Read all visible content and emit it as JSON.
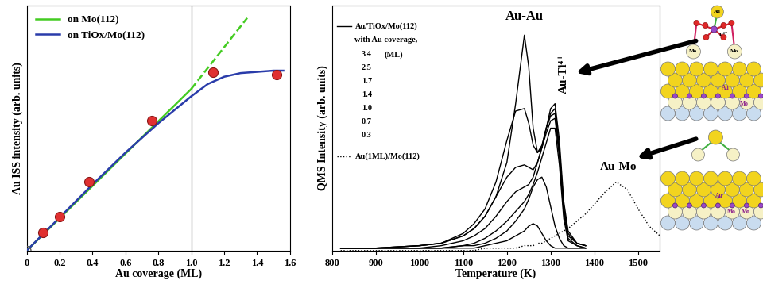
{
  "chart_data": [
    {
      "type": "line",
      "x_label": "Au coverage (ML)",
      "y_label": "Au ISS intensity (arb. units)",
      "xlim": [
        0,
        1.6
      ],
      "xticks": [
        0,
        0.2,
        0.4,
        0.6,
        0.8,
        1.0,
        1.2,
        1.4,
        1.6
      ],
      "ylim": [
        0,
        1
      ],
      "yticks": [],
      "tick_labels": "x",
      "grid": false,
      "legend": "upper left",
      "reference_x": 1.0,
      "series": [
        {
          "name": "on Mo(112)",
          "type": "line",
          "color": "#44cc22",
          "line_style": "solid",
          "x": [
            0,
            1.0
          ],
          "values": [
            0,
            0.66
          ]
        },
        {
          "type": "line",
          "color": "#44cc22",
          "line_style": "dashed",
          "x": [
            1.0,
            1.34
          ],
          "values": [
            0.66,
            0.95
          ]
        },
        {
          "name": "on TiOx/Mo(112)",
          "type": "line",
          "color": "#2a3caa",
          "line_style": "solid",
          "x": [
            0,
            0.2,
            0.4,
            0.6,
            0.8,
            1.0,
            1.1,
            1.2,
            1.3,
            1.4,
            1.5,
            1.56
          ],
          "values": [
            0,
            0.135,
            0.27,
            0.4,
            0.52,
            0.63,
            0.68,
            0.71,
            0.725,
            0.73,
            0.735,
            0.735
          ]
        },
        {
          "type": "scatter",
          "color": "#e03030",
          "marker": "circle",
          "x": [
            0.1,
            0.2,
            0.38,
            0.76,
            1.13,
            1.52
          ],
          "values": [
            0.075,
            0.14,
            0.28,
            0.53,
            0.73,
            0.72
          ]
        },
        {
          "type": "scatter",
          "color": "#555555",
          "marker": "circle_open",
          "x": [
            0
          ],
          "values": [
            0
          ]
        }
      ]
    },
    {
      "type": "line",
      "x_label": "Temperature (K)",
      "y_label": "QMS Intensity (arb. units)",
      "xlim": [
        800,
        1550
      ],
      "xticks": [
        800,
        900,
        1000,
        1100,
        1200,
        1300,
        1400,
        1500
      ],
      "ylim": [
        0,
        1
      ],
      "yticks": [],
      "tick_labels": "x",
      "grid": false,
      "annotations": [
        "Au-Au",
        "Au-Ti⁴⁺",
        "Au-Mo"
      ],
      "legend_title": [
        "Au/TiOx/Mo(112)",
        "with Au coverage,"
      ],
      "legend_unit": "(ML)",
      "x": [
        820,
        900,
        1000,
        1050,
        1100,
        1125,
        1150,
        1175,
        1200,
        1220,
        1240,
        1250,
        1260,
        1270,
        1280,
        1290,
        1300,
        1310,
        1320,
        1330,
        1340,
        1360,
        1380,
        1400,
        1425,
        1450,
        1475,
        1500,
        1525,
        1550
      ],
      "series": [
        {
          "name": "3.4",
          "color": "#000000",
          "line_style": "solid",
          "values": [
            0.01,
            0.01,
            0.02,
            0.03,
            0.06,
            0.09,
            0.14,
            0.22,
            0.36,
            0.6,
            0.88,
            0.75,
            0.5,
            0.4,
            0.42,
            0.5,
            0.58,
            0.6,
            0.45,
            0.2,
            0.08,
            0.03,
            0.02,
            null,
            null,
            null,
            null,
            null,
            null,
            null
          ]
        },
        {
          "name": "2.5",
          "color": "#000000",
          "line_style": "solid",
          "values": [
            0.01,
            0.01,
            0.02,
            0.03,
            0.07,
            0.11,
            0.17,
            0.28,
            0.45,
            0.57,
            0.58,
            0.52,
            0.43,
            0.4,
            0.43,
            0.5,
            0.56,
            0.58,
            0.42,
            0.18,
            0.07,
            0.03,
            0.02,
            null,
            null,
            null,
            null,
            null,
            null,
            null
          ]
        },
        {
          "name": "1.7",
          "color": "#000000",
          "line_style": "solid",
          "values": [
            0.01,
            0.01,
            0.02,
            0.03,
            0.06,
            0.09,
            0.14,
            0.22,
            0.3,
            0.34,
            0.35,
            0.34,
            0.33,
            0.36,
            0.42,
            0.5,
            0.55,
            0.56,
            0.4,
            0.17,
            0.06,
            0.03,
            0.02,
            null,
            null,
            null,
            null,
            null,
            null,
            null
          ]
        },
        {
          "name": "1.4",
          "color": "#000000",
          "line_style": "solid",
          "values": [
            0.01,
            0.01,
            0.01,
            0.02,
            0.04,
            0.06,
            0.09,
            0.14,
            0.2,
            0.24,
            0.26,
            0.27,
            0.3,
            0.36,
            0.42,
            0.48,
            0.53,
            0.54,
            0.38,
            0.15,
            0.05,
            0.02,
            0.01,
            null,
            null,
            null,
            null,
            null,
            null,
            null
          ]
        },
        {
          "name": "1.0",
          "color": "#000000",
          "line_style": "solid",
          "values": [
            0.01,
            0.01,
            0.01,
            0.01,
            0.02,
            0.03,
            0.05,
            0.08,
            0.12,
            0.16,
            0.2,
            0.23,
            0.27,
            0.32,
            0.38,
            0.44,
            0.5,
            0.5,
            0.35,
            0.13,
            0.04,
            0.02,
            0.01,
            null,
            null,
            null,
            null,
            null,
            null,
            null
          ]
        },
        {
          "name": "0.7",
          "color": "#000000",
          "line_style": "solid",
          "values": [
            0.01,
            0.01,
            0.01,
            0.01,
            0.02,
            0.02,
            0.03,
            0.05,
            0.08,
            0.12,
            0.17,
            0.21,
            0.26,
            0.29,
            0.3,
            0.26,
            0.18,
            0.1,
            0.05,
            0.02,
            0.01,
            0.01,
            0.01,
            null,
            null,
            null,
            null,
            null,
            null,
            null
          ]
        },
        {
          "name": "0.3",
          "color": "#000000",
          "line_style": "solid",
          "values": [
            0.01,
            0.01,
            0.01,
            0.01,
            0.01,
            0.01,
            0.02,
            0.03,
            0.04,
            0.06,
            0.08,
            0.1,
            0.11,
            0.1,
            0.07,
            0.04,
            0.02,
            0.01,
            0.01,
            0.01,
            0.01,
            0.01,
            0.01,
            null,
            null,
            null,
            null,
            null,
            null,
            null
          ]
        },
        {
          "name": "Au(1ML)/Mo(112)",
          "color": "#000000",
          "line_style": "dotted",
          "values": [
            0.0,
            0.0,
            0.0,
            0.0,
            0.0,
            0.0,
            0.01,
            0.01,
            0.01,
            0.01,
            0.02,
            0.02,
            0.02,
            0.03,
            0.03,
            0.04,
            0.05,
            0.06,
            0.07,
            0.08,
            0.09,
            0.12,
            0.15,
            0.19,
            0.24,
            0.28,
            0.25,
            0.17,
            0.1,
            0.06
          ]
        }
      ]
    }
  ],
  "diagrams": {
    "top_cluster": [
      "Au",
      "Ti⁴⁺",
      "Mo",
      "Mo"
    ],
    "top_slab": [
      "Au",
      "Mo"
    ],
    "bottom_slab": [
      "Au",
      "Mo",
      "Mo"
    ]
  }
}
